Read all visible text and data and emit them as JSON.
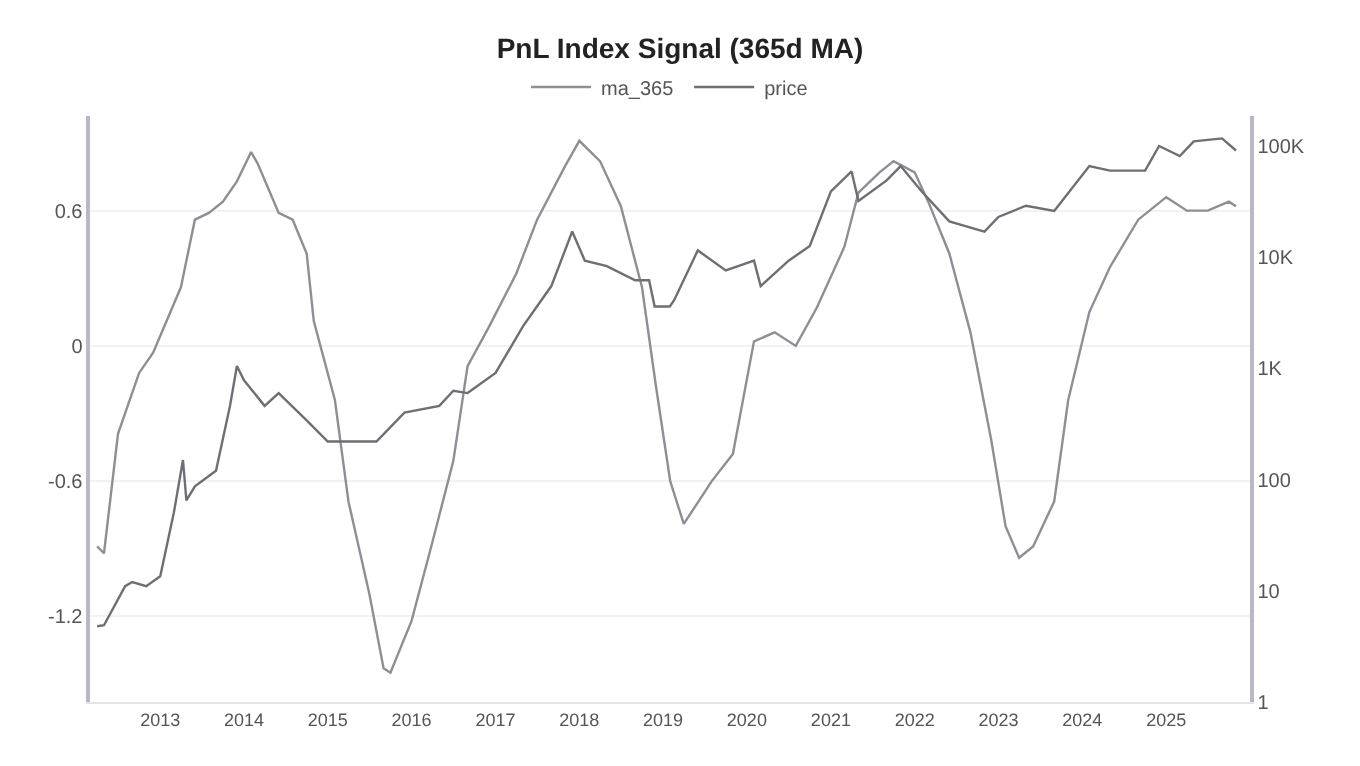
{
  "chart_data": {
    "type": "line",
    "title": "PnL Index Signal (365d MA)",
    "series": [
      {
        "name": "ma_365",
        "color": "#8e8e96",
        "x": [
          "2012-04",
          "2012-05",
          "2012-07",
          "2012-10",
          "2012-12",
          "2013-04",
          "2013-06",
          "2013-08",
          "2013-10",
          "2013-12",
          "2014-02",
          "2014-03",
          "2014-06",
          "2014-08",
          "2014-10",
          "2014-11",
          "2015-02",
          "2015-04",
          "2015-07",
          "2015-09",
          "2015-10",
          "2016-01",
          "2016-04",
          "2016-07",
          "2016-09",
          "2016-12",
          "2017-04",
          "2017-07",
          "2017-11",
          "2018-01",
          "2018-04",
          "2018-07",
          "2018-10",
          "2018-12",
          "2019-02",
          "2019-04",
          "2019-08",
          "2019-11",
          "2020-02",
          "2020-05",
          "2020-08",
          "2020-11",
          "2021-03",
          "2021-05",
          "2021-08",
          "2021-10",
          "2022-01",
          "2022-03",
          "2022-06",
          "2022-09",
          "2022-12",
          "2023-02",
          "2023-04",
          "2023-06",
          "2023-09",
          "2023-11",
          "2024-02",
          "2024-05",
          "2024-09",
          "2025-01",
          "2025-04",
          "2025-07",
          "2025-10",
          "2025-11"
        ],
        "values": [
          -0.89,
          -0.92,
          -0.39,
          -0.12,
          -0.03,
          0.26,
          0.56,
          0.59,
          0.64,
          0.73,
          0.86,
          0.81,
          0.59,
          0.56,
          0.41,
          0.11,
          -0.24,
          -0.69,
          -1.1,
          -1.43,
          -1.45,
          -1.22,
          -0.87,
          -0.51,
          -0.09,
          0.08,
          0.32,
          0.56,
          0.8,
          0.91,
          0.82,
          0.62,
          0.26,
          -0.18,
          -0.6,
          -0.79,
          -0.6,
          -0.48,
          0.02,
          0.06,
          0.0,
          0.17,
          0.44,
          0.68,
          0.77,
          0.82,
          0.77,
          0.64,
          0.41,
          0.06,
          -0.42,
          -0.8,
          -0.94,
          -0.89,
          -0.69,
          -0.24,
          0.15,
          0.35,
          0.56,
          0.66,
          0.6,
          0.6,
          0.64,
          0.62
        ]
      },
      {
        "name": "price",
        "color": "#6e6e76",
        "axis": "y2",
        "x": [
          "2012-04",
          "2012-05",
          "2012-08",
          "2012-09",
          "2012-11",
          "2013-01",
          "2013-03",
          "2013-04-10",
          "2013-04-25",
          "2013-06",
          "2013-09",
          "2013-11",
          "2013-12",
          "2014-01",
          "2014-04",
          "2014-06",
          "2014-10",
          "2015-01",
          "2015-03",
          "2015-08",
          "2015-12",
          "2016-05",
          "2016-07",
          "2016-09",
          "2017-01",
          "2017-05",
          "2017-09",
          "2017-12",
          "2018-01-25",
          "2018-05",
          "2018-09",
          "2018-11",
          "2018-11-25",
          "2019-01-30",
          "2019-02-18",
          "2019-06",
          "2019-10",
          "2020-02",
          "2020-03",
          "2020-07",
          "2020-10",
          "2021-01",
          "2021-04",
          "2021-05",
          "2021-09",
          "2021-11",
          "2022-02",
          "2022-06",
          "2022-11",
          "2023-01",
          "2023-05",
          "2023-09",
          "2024-02",
          "2024-05",
          "2024-10",
          "2024-12",
          "2025-03",
          "2025-05",
          "2025-09",
          "2025-11"
        ],
        "values": [
          4.8,
          4.9,
          11,
          12,
          11,
          13.5,
          50,
          150,
          65,
          87,
          120,
          460,
          1050,
          780,
          460,
          600,
          340,
          220,
          220,
          220,
          400,
          460,
          630,
          600,
          910,
          2400,
          5500,
          17000,
          9300,
          8300,
          6200,
          6200,
          3600,
          3600,
          4100,
          11500,
          7600,
          9300,
          5500,
          9300,
          12600,
          39000,
          59000,
          32000,
          49000,
          66000,
          39000,
          21000,
          17000,
          23000,
          29000,
          26000,
          66000,
          60000,
          60000,
          100000,
          81000,
          110000,
          117000,
          91000
        ]
      }
    ],
    "xlim": [
      "2012-03-01",
      "2026-01-01"
    ],
    "xticks": [
      "2013",
      "2014",
      "2015",
      "2016",
      "2017",
      "2018",
      "2019",
      "2020",
      "2021",
      "2022",
      "2023",
      "2024",
      "2025"
    ],
    "ylim": [
      -1.58,
      1.02
    ],
    "yticks": [
      -1.2,
      -0.6,
      0,
      0.6
    ],
    "y2lim": [
      1,
      186000
    ],
    "y2ticks": [
      1,
      10,
      100,
      {
        "value": 1000,
        "label": "1K"
      },
      {
        "value": 10000,
        "label": "10K"
      },
      {
        "value": 100000,
        "label": "100K"
      }
    ],
    "log": "y2",
    "grid": "y",
    "legend": "top",
    "marker": "none",
    "line_style": "solid"
  }
}
